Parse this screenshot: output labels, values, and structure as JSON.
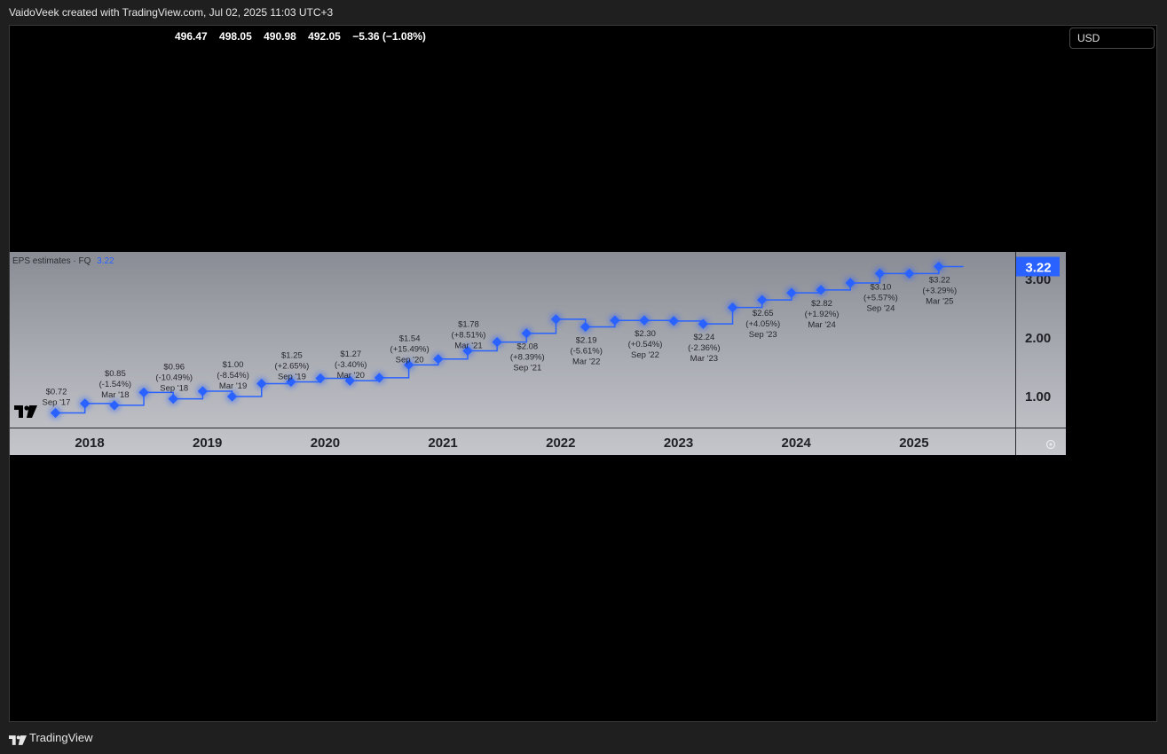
{
  "header": {
    "caption": "VaidoVeek created with TradingView.com, Jul 02, 2025 11:03 UTC+3"
  },
  "ohlc": [
    "496.47",
    "498.05",
    "490.98",
    "492.05",
    "−5.36 (−1.08%)"
  ],
  "currency": "USD",
  "pane": {
    "title": "EPS estimates · FQ",
    "current_value": "3.22"
  },
  "footer": {
    "brand": "TradingView"
  },
  "colors": {
    "series": "#2962ff",
    "background": "#000000",
    "pane_top": "#8a8c95",
    "pane_bottom": "#c5c6cc"
  },
  "chart_data": {
    "type": "line",
    "step": true,
    "title": "EPS estimates · FQ",
    "x_tick_labels": [
      "2018",
      "2019",
      "2020",
      "2021",
      "2022",
      "2023",
      "2024",
      "2025"
    ],
    "y_tick_labels": [
      "1.00",
      "2.00",
      "3.00"
    ],
    "ylim": [
      0.45,
      3.5
    ],
    "last_value_label": "3.22",
    "points": [
      {
        "t": 2017.71,
        "v": 0.72,
        "label": [
          "$0.72",
          "Sep '17"
        ],
        "label_dy": -30
      },
      {
        "t": 2017.96,
        "v": 0.88
      },
      {
        "t": 2018.21,
        "v": 0.85,
        "label": [
          "$0.85",
          "(-1.54%)",
          "Mar '18"
        ],
        "label_dy": -42
      },
      {
        "t": 2018.46,
        "v": 1.07
      },
      {
        "t": 2018.71,
        "v": 0.96,
        "label": [
          "$0.96",
          "(-10.49%)",
          "Sep '18"
        ],
        "label_dy": -42
      },
      {
        "t": 2018.96,
        "v": 1.09
      },
      {
        "t": 2019.21,
        "v": 1.0,
        "label": [
          "$1.00",
          "(-8.54%)",
          "Mar '19"
        ],
        "label_dy": -42
      },
      {
        "t": 2019.46,
        "v": 1.22
      },
      {
        "t": 2019.71,
        "v": 1.25,
        "label": [
          "$1.25",
          "(+2.65%)",
          "Sep '19"
        ],
        "label_dy": -36
      },
      {
        "t": 2019.96,
        "v": 1.31
      },
      {
        "t": 2020.21,
        "v": 1.27,
        "label": [
          "$1.27",
          "(-3.40%)",
          "Mar '20"
        ],
        "label_dy": -36
      },
      {
        "t": 2020.46,
        "v": 1.32
      },
      {
        "t": 2020.71,
        "v": 1.54,
        "label": [
          "$1.54",
          "(+15.49%)",
          "Sep '20"
        ],
        "label_dy": -36
      },
      {
        "t": 2020.96,
        "v": 1.64
      },
      {
        "t": 2021.21,
        "v": 1.78,
        "label": [
          "$1.78",
          "(+8.51%)",
          "Mar '21"
        ],
        "label_dy": -36
      },
      {
        "t": 2021.46,
        "v": 1.93
      },
      {
        "t": 2021.71,
        "v": 2.08,
        "label": [
          "$2.08",
          "(+8.39%)",
          "Sep '21"
        ],
        "label_dy": 9
      },
      {
        "t": 2021.96,
        "v": 2.32
      },
      {
        "t": 2022.21,
        "v": 2.19,
        "label": [
          "$2.19",
          "(-5.61%)",
          "Mar '22"
        ],
        "label_dy": 9
      },
      {
        "t": 2022.46,
        "v": 2.3
      },
      {
        "t": 2022.71,
        "v": 2.3,
        "label": [
          "$2.30",
          "(+0.54%)",
          "Sep '22"
        ],
        "label_dy": 9
      },
      {
        "t": 2022.96,
        "v": 2.29
      },
      {
        "t": 2023.21,
        "v": 2.24,
        "label": [
          "$2.24",
          "(-2.36%)",
          "Mar '23"
        ],
        "label_dy": 9
      },
      {
        "t": 2023.46,
        "v": 2.52
      },
      {
        "t": 2023.71,
        "v": 2.65,
        "label": [
          "$2.65",
          "(+4.05%)",
          "Sep '23"
        ],
        "label_dy": 9
      },
      {
        "t": 2023.96,
        "v": 2.77
      },
      {
        "t": 2024.21,
        "v": 2.82,
        "label": [
          "$2.82",
          "(+1.92%)",
          "Mar '24"
        ],
        "label_dy": 9
      },
      {
        "t": 2024.46,
        "v": 2.94
      },
      {
        "t": 2024.71,
        "v": 3.1,
        "label": [
          "$3.10",
          "(+5.57%)",
          "Sep '24"
        ],
        "label_dy": 9
      },
      {
        "t": 2024.96,
        "v": 3.1
      },
      {
        "t": 2025.21,
        "v": 3.22,
        "label": [
          "$3.22",
          "(+3.29%)",
          "Mar '25"
        ],
        "label_dy": 9
      }
    ],
    "line_end_t": 2025.42
  }
}
